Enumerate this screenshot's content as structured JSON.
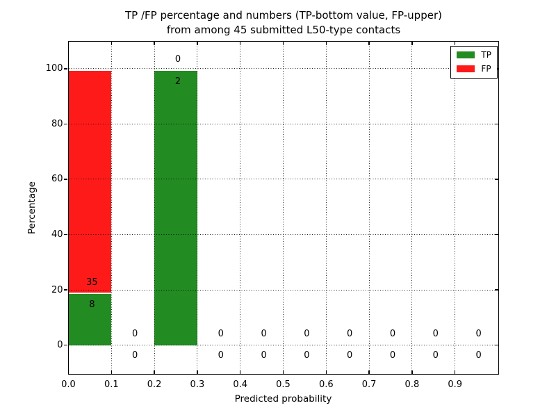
{
  "figure": {
    "title_lines": [
      "TP /FP percentage and numbers (TP-bottom value, FP-upper)",
      "from among 45 submitted L50-type contacts"
    ]
  },
  "chart_data": {
    "type": "bar",
    "subtype": "stacked-percentage-histogram",
    "title": "TP /FP percentage and numbers (TP-bottom value, FP-upper) from among 45 submitted L50-type contacts",
    "xlabel": "Predicted probability",
    "ylabel": "Percentage",
    "xlim": [
      0.0,
      1.0
    ],
    "ylim": [
      -10.3,
      109.9
    ],
    "grid": true,
    "total_contacts": 45,
    "colors": {
      "tp": "#228B22",
      "fp": "#FF1A1A",
      "background": "#ffffff",
      "text": "#000000"
    },
    "legend": {
      "position": "upper right",
      "entries": [
        {
          "label": "TP",
          "color": "#228B22"
        },
        {
          "label": "FP",
          "color": "#FF1A1A"
        }
      ]
    },
    "xticks": [
      {
        "v": 0.0,
        "label": "0.0"
      },
      {
        "v": 0.1,
        "label": "0.1"
      },
      {
        "v": 0.2,
        "label": "0.2"
      },
      {
        "v": 0.3,
        "label": "0.3"
      },
      {
        "v": 0.4,
        "label": "0.4"
      },
      {
        "v": 0.5,
        "label": "0.5"
      },
      {
        "v": 0.6,
        "label": "0.6"
      },
      {
        "v": 0.7,
        "label": "0.7"
      },
      {
        "v": 0.8,
        "label": "0.8"
      },
      {
        "v": 0.9,
        "label": "0.9"
      }
    ],
    "yticks": [
      {
        "v": 0,
        "label": "0"
      },
      {
        "v": 20,
        "label": "20"
      },
      {
        "v": 40,
        "label": "40"
      },
      {
        "v": 60,
        "label": "60"
      },
      {
        "v": 80,
        "label": "80"
      },
      {
        "v": 100,
        "label": "100"
      }
    ],
    "bins": [
      {
        "x0": 0.0,
        "x1": 0.1,
        "tp_count": 8,
        "fp_count": 35,
        "tp_pct": 18.6,
        "fp_pct": 80.6
      },
      {
        "x0": 0.1,
        "x1": 0.2,
        "tp_count": 0,
        "fp_count": 0,
        "tp_pct": 0,
        "fp_pct": 0
      },
      {
        "x0": 0.2,
        "x1": 0.3,
        "tp_count": 2,
        "fp_count": 0,
        "tp_pct": 99.2,
        "fp_pct": 0
      },
      {
        "x0": 0.3,
        "x1": 0.4,
        "tp_count": 0,
        "fp_count": 0,
        "tp_pct": 0,
        "fp_pct": 0
      },
      {
        "x0": 0.4,
        "x1": 0.5,
        "tp_count": 0,
        "fp_count": 0,
        "tp_pct": 0,
        "fp_pct": 0
      },
      {
        "x0": 0.5,
        "x1": 0.6,
        "tp_count": 0,
        "fp_count": 0,
        "tp_pct": 0,
        "fp_pct": 0
      },
      {
        "x0": 0.6,
        "x1": 0.7,
        "tp_count": 0,
        "fp_count": 0,
        "tp_pct": 0,
        "fp_pct": 0
      },
      {
        "x0": 0.7,
        "x1": 0.8,
        "tp_count": 0,
        "fp_count": 0,
        "tp_pct": 0,
        "fp_pct": 0
      },
      {
        "x0": 0.8,
        "x1": 0.9,
        "tp_count": 0,
        "fp_count": 0,
        "tp_pct": 0,
        "fp_pct": 0
      },
      {
        "x0": 0.9,
        "x1": 1.0,
        "tp_count": 0,
        "fp_count": 0,
        "tp_pct": 0,
        "fp_pct": 0
      }
    ]
  }
}
